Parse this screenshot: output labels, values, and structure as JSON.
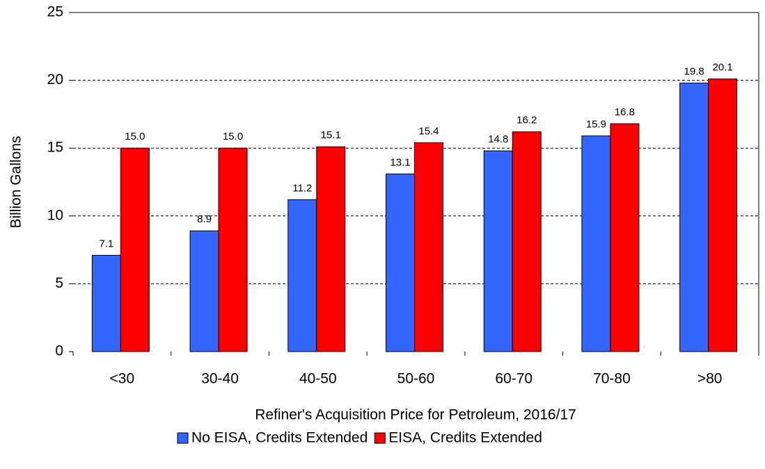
{
  "chart_data": {
    "type": "bar",
    "x_label": "Refiner's Acquisition Price for Petroleum, 2016/17",
    "y_label": "Billion Gallons",
    "categories": [
      "<30",
      "30-40",
      "40-50",
      "50-60",
      "60-70",
      "70-80",
      ">80"
    ],
    "series": [
      {
        "name": "No EISA, Credits Extended",
        "color": "#3366ff",
        "values": [
          7.1,
          8.9,
          11.2,
          13.1,
          14.8,
          15.9,
          19.8
        ],
        "value_labels": [
          "7.1",
          "8.9",
          "11.2",
          "13.1",
          "14.8",
          "15.9",
          "19.8"
        ]
      },
      {
        "name": "EISA, Credits Extended",
        "color": "#ff0000",
        "values": [
          15.0,
          15.0,
          15.1,
          15.4,
          16.2,
          16.8,
          20.1
        ],
        "value_labels": [
          "15.0",
          "15.0",
          "15.1",
          "15.4",
          "16.2",
          "16.8",
          "20.1"
        ]
      }
    ],
    "ylim": [
      0,
      25
    ],
    "yticks": [
      0,
      5,
      10,
      15,
      20,
      25
    ],
    "grid": true,
    "legend": "bottom"
  }
}
